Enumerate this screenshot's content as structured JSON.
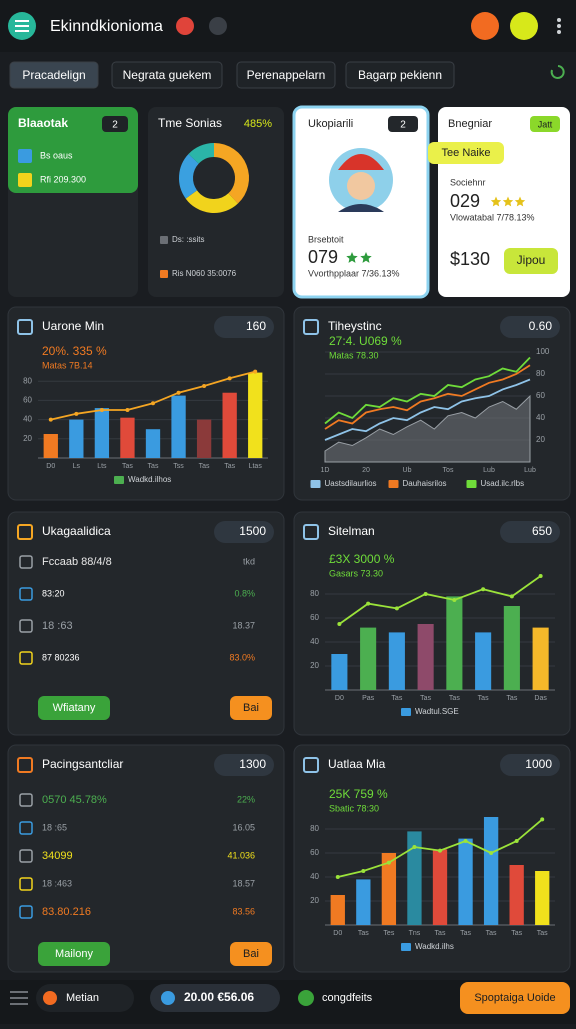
{
  "header": {
    "title": "Ekinndkionioma"
  },
  "tabs": [
    "Pracadelign",
    "Negrata guekem",
    "Perenappelarn",
    "Bagarp pekienn"
  ],
  "cards": [
    {
      "title": "Blaaotak",
      "badge": "2",
      "rows": [
        "Bs oaus",
        "Rfi 209.300"
      ]
    },
    {
      "title": "Tme Sonias",
      "value": "485%",
      "donut": [
        38,
        27,
        22,
        13
      ],
      "donut_colors": [
        "#f5a623",
        "#f1d31c",
        "#3aa0e0",
        "#2bb5a8"
      ],
      "legend": [
        "Ds: :ssits",
        "Ris N060 35:0076"
      ]
    },
    {
      "title": "Ukopiarili",
      "badge": "2",
      "caption": "Brsebtoit",
      "value": "079",
      "note": "Vvorthpplaar 7/36.13%"
    },
    {
      "title": "Bnegniar",
      "badge": "Jatt",
      "banner": "Tee Naike",
      "caption": "Sociehnr",
      "value": "029",
      "note": "Vlowatabal 7/78.13%",
      "price": "$130",
      "button": "Jipou"
    }
  ],
  "chart_data": [
    {
      "type": "combo",
      "title": "Uarone Min",
      "header_value": "160",
      "annotation": "20%. 335 %",
      "subtitle": "Matas 7B.14",
      "categories": [
        "D0",
        "Ls",
        "Lts",
        "Tas",
        "Tas",
        "Tss",
        "Tas",
        "Tas",
        "Ltas"
      ],
      "ylim": [
        0,
        100
      ],
      "yticks": [
        20,
        40,
        60,
        80
      ],
      "grid": true,
      "series": [
        {
          "name": "Wadkd.ilhos",
          "type": "bar",
          "color": "#4caf50",
          "colors": [
            "#f07a22",
            "#3a9be0",
            "#3a9be0",
            "#e04a3a",
            "#3a9be0",
            "#3a9be0",
            "#8b3a3a",
            "#e04a3a",
            "#f1e11c"
          ],
          "values": [
            25,
            40,
            52,
            42,
            30,
            65,
            40,
            68,
            89
          ]
        },
        {
          "type": "line",
          "color": "#f5a623",
          "values": [
            40,
            46,
            50,
            50,
            57,
            68,
            75,
            83,
            90
          ]
        }
      ]
    },
    {
      "type": "line",
      "title": "Tiheystinc",
      "header_value": "0.60",
      "annotation": "27:4. U069 %",
      "subtitle": "Matas 78.30",
      "categories": [
        "1D",
        null,
        null,
        "20",
        null,
        null,
        "Ub",
        null,
        null,
        "Tos",
        null,
        null,
        "Lub",
        null,
        null,
        "Lub"
      ],
      "ylim": [
        0,
        100
      ],
      "yticks": [
        20,
        40,
        60,
        80,
        100
      ],
      "grid": true,
      "yaxis_side": "right",
      "series": [
        {
          "type": "area",
          "color": "#6b6f75",
          "values": [
            10,
            18,
            15,
            22,
            30,
            25,
            32,
            38,
            30,
            42,
            45,
            40,
            50,
            55,
            48,
            60
          ]
        },
        {
          "name": "Uastsdilaurlios",
          "type": "line",
          "color": "#8fc3e8",
          "values": [
            20,
            25,
            30,
            28,
            35,
            40,
            38,
            45,
            50,
            48,
            55,
            58,
            60,
            66,
            70,
            75
          ]
        },
        {
          "name": "Dauhaisrilos",
          "type": "line",
          "color": "#f07a22",
          "values": [
            30,
            38,
            35,
            45,
            48,
            50,
            47,
            55,
            58,
            62,
            60,
            66,
            72,
            75,
            80,
            88
          ]
        },
        {
          "name": "Usad.ilc.rlbs",
          "type": "line",
          "color": "#6fdc3a",
          "values": [
            35,
            45,
            40,
            52,
            50,
            58,
            55,
            62,
            60,
            70,
            68,
            75,
            78,
            85,
            82,
            95
          ]
        }
      ]
    },
    {
      "type": "combo",
      "title": "Sitelman",
      "header_value": "650",
      "annotation": "£3X 3000 %",
      "subtitle": "Gasars 73.30",
      "categories": [
        "D0",
        "Pas",
        "Tas",
        "Tas",
        "Tas",
        "Tas",
        "Tas",
        "Das"
      ],
      "ylim": [
        0,
        100
      ],
      "yticks": [
        20,
        40,
        60,
        80
      ],
      "grid": true,
      "series": [
        {
          "name": "Wadtul.SGE",
          "type": "bar",
          "color": "#3a9be0",
          "colors": [
            "#3a9be0",
            "#4caf50",
            "#3a9be0",
            "#8e4a6a",
            "#4caf50",
            "#3a9be0",
            "#4caf50",
            "#f5b82a"
          ],
          "values": [
            30,
            52,
            48,
            55,
            78,
            48,
            70,
            52
          ]
        },
        {
          "type": "line",
          "color": "#9be33a",
          "values": [
            55,
            72,
            68,
            80,
            75,
            84,
            78,
            95
          ]
        }
      ]
    },
    {
      "type": "combo",
      "title": "Uatlaa Mia",
      "header_value": "1000",
      "annotation": "25K 759 %",
      "subtitle": "Sbatic 78:30",
      "categories": [
        "D0",
        "Tas",
        "Tes",
        "Tns",
        "Tas",
        "Tas",
        "Tas",
        "Tas",
        "Tas"
      ],
      "ylim": [
        0,
        100
      ],
      "yticks": [
        20,
        40,
        60,
        80
      ],
      "grid": true,
      "series": [
        {
          "name": "Wadkd.ilhs",
          "type": "bar",
          "color": "#3a9be0",
          "colors": [
            "#f07a22",
            "#3a9be0",
            "#f07a22",
            "#2a8aa0",
            "#e04a3a",
            "#3a9be0",
            "#3a9be0",
            "#e04a3a",
            "#f1e11c"
          ],
          "values": [
            25,
            38,
            60,
            78,
            63,
            72,
            90,
            50,
            45
          ]
        },
        {
          "type": "line",
          "color": "#9be33a",
          "values": [
            40,
            45,
            52,
            65,
            62,
            70,
            60,
            70,
            88
          ]
        }
      ]
    }
  ],
  "lists": [
    {
      "title": "Ukagaalidica",
      "header_value": "1500",
      "icon_color": "#f5a623",
      "rows": [
        {
          "label": "Fccaab 88/4/8",
          "right": "tkd",
          "color": "#e8e8e8",
          "right_color": "#9aa0a6"
        },
        {
          "label": "83:20",
          "right": "0.8%",
          "color": "#ffffff",
          "right_color": "#4caf50"
        },
        {
          "label": "18 :63",
          "right": "18.37",
          "color": "#9aa0a6",
          "right_color": "#9aa0a6"
        },
        {
          "label": "87 80236",
          "right": "83.0%",
          "color": "#ffffff",
          "right_color": "#f07a22"
        }
      ],
      "buttons": [
        "Wfiatany",
        "Bai"
      ]
    },
    {
      "title": "Pacingsantcliar",
      "header_value": "1300",
      "icon_color": "#f07a22",
      "rows": [
        {
          "label": "0570 45.78%",
          "right": "22%",
          "color": "#4caf50",
          "right_color": "#4caf50"
        },
        {
          "label": "18 :65",
          "right": "16.05",
          "color": "#9aa0a6",
          "right_color": "#9aa0a6"
        },
        {
          "label": "34099",
          "right": "41.036",
          "color": "#f1e11c",
          "right_color": "#f1e11c"
        },
        {
          "label": "18 :463",
          "right": "18.57",
          "color": "#9aa0a6",
          "right_color": "#9aa0a6"
        },
        {
          "label": "83.80.216",
          "right": "83.56",
          "color": "#f07a22",
          "right_color": "#f07a22"
        }
      ],
      "buttons": [
        "Mailony",
        "Bai"
      ]
    }
  ],
  "footer": {
    "items": [
      "Metian",
      "20.00 €56.06",
      "congdfeits"
    ],
    "button": "Spoptaiga Uoide"
  }
}
